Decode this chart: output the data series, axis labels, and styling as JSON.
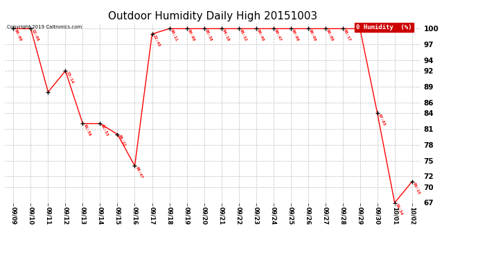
{
  "title": "Outdoor Humidity Daily High 20151003",
  "copyright": "Copyright 2019 Caltronics.com",
  "legend_label": "0 Humidity  (%)",
  "x_labels": [
    "09/09",
    "09/10",
    "09/11",
    "09/12",
    "09/13",
    "09/14",
    "09/15",
    "09/16",
    "09/17",
    "09/18",
    "09/19",
    "09/20",
    "09/21",
    "09/22",
    "09/23",
    "09/24",
    "09/25",
    "09/26",
    "09/27",
    "09/28",
    "09/29",
    "09/30",
    "10/01",
    "10/02"
  ],
  "y_values": [
    100,
    100,
    88,
    92,
    82,
    82,
    80,
    74,
    99,
    100,
    100,
    100,
    100,
    100,
    100,
    100,
    100,
    100,
    100,
    100,
    100,
    84,
    67,
    71
  ],
  "point_labels": [
    "00:00",
    "22:08",
    "",
    "23:14",
    "01:58",
    "02:53",
    "06:22",
    "06:47",
    "22:45",
    "00:11",
    "00:00",
    "05:38",
    "04:19",
    "05:32",
    "00:40",
    "00:47",
    "00:00",
    "00:00",
    "00:00",
    "05:17",
    "",
    "07:03",
    "19:34",
    "09:15"
  ],
  "ylim_min": 67,
  "ylim_max": 101,
  "yticks": [
    67,
    70,
    72,
    75,
    78,
    81,
    84,
    86,
    89,
    92,
    94,
    97,
    100
  ],
  "line_color": "#ff0000",
  "marker_color": "#000000",
  "background_color": "#ffffff",
  "grid_color": "#bbbbbb",
  "title_fontsize": 11,
  "legend_bg": "#cc0000",
  "legend_fg": "#ffffff"
}
